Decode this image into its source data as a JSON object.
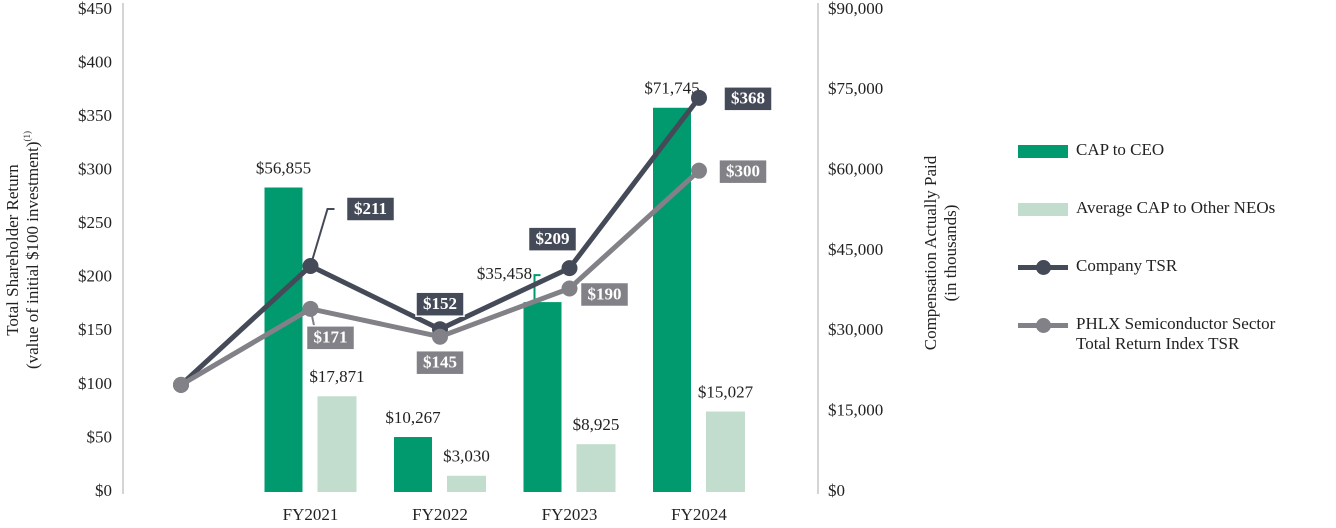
{
  "chart_data": {
    "type": "bar-line",
    "categories": [
      null,
      "FY2021",
      "FY2022",
      "FY2023",
      "FY2024"
    ],
    "ylabel": [
      "Total Shareholder Return",
      "(value of initial $100 investment)"
    ],
    "ylabel_note": "(1)",
    "y2label": [
      "Compensation Actually Paid",
      "(in thousands)"
    ],
    "ylim": [
      0,
      450
    ],
    "yticks": [
      {
        "value": 0,
        "label": "$0"
      },
      {
        "value": 50,
        "label": "$50"
      },
      {
        "value": 100,
        "label": "$100"
      },
      {
        "value": 150,
        "label": "$150"
      },
      {
        "value": 200,
        "label": "$200"
      },
      {
        "value": 250,
        "label": "$250"
      },
      {
        "value": 300,
        "label": "$300"
      },
      {
        "value": 350,
        "label": "$350"
      },
      {
        "value": 400,
        "label": "$400"
      },
      {
        "value": 450,
        "label": "$450"
      }
    ],
    "y2lim": [
      0,
      90000
    ],
    "y2ticks": [
      {
        "value": 0,
        "label": "$0"
      },
      {
        "value": 15000,
        "label": "$15,000"
      },
      {
        "value": 30000,
        "label": "$30,000"
      },
      {
        "value": 45000,
        "label": "$45,000"
      },
      {
        "value": 60000,
        "label": "$60,000"
      },
      {
        "value": 75000,
        "label": "$75,000"
      },
      {
        "value": 90000,
        "label": "$90,000"
      }
    ],
    "grid": false,
    "legend": "right",
    "series": [
      {
        "name": "CAP to CEO",
        "type": "bar",
        "axis": "y2",
        "color": "#009a6e",
        "values": [
          null,
          56855,
          10267,
          35458,
          71745
        ],
        "value_labels": [
          null,
          "$56,855",
          "$10,267",
          "$35,458",
          "$71,745"
        ]
      },
      {
        "name": "Average CAP to Other NEOs",
        "type": "bar",
        "axis": "y2",
        "color": "#c2dccd",
        "values": [
          null,
          17871,
          3030,
          8925,
          15027
        ],
        "value_labels": [
          null,
          "$17,871",
          "$3,030",
          "$8,925",
          "$15,027"
        ]
      },
      {
        "name": "Company TSR",
        "type": "line",
        "color": "#454a58",
        "values": [
          100,
          211,
          152,
          209,
          368
        ],
        "value_labels": [
          null,
          "$211",
          "$152",
          "$209",
          "$368"
        ]
      },
      {
        "name": "PHLX Semiconductor Sector Total Return Index TSR",
        "type": "line",
        "color": "#818187",
        "values": [
          100,
          171,
          145,
          190,
          300
        ],
        "value_labels": [
          null,
          "$171",
          "$145",
          "$190",
          "$300"
        ]
      }
    ]
  }
}
